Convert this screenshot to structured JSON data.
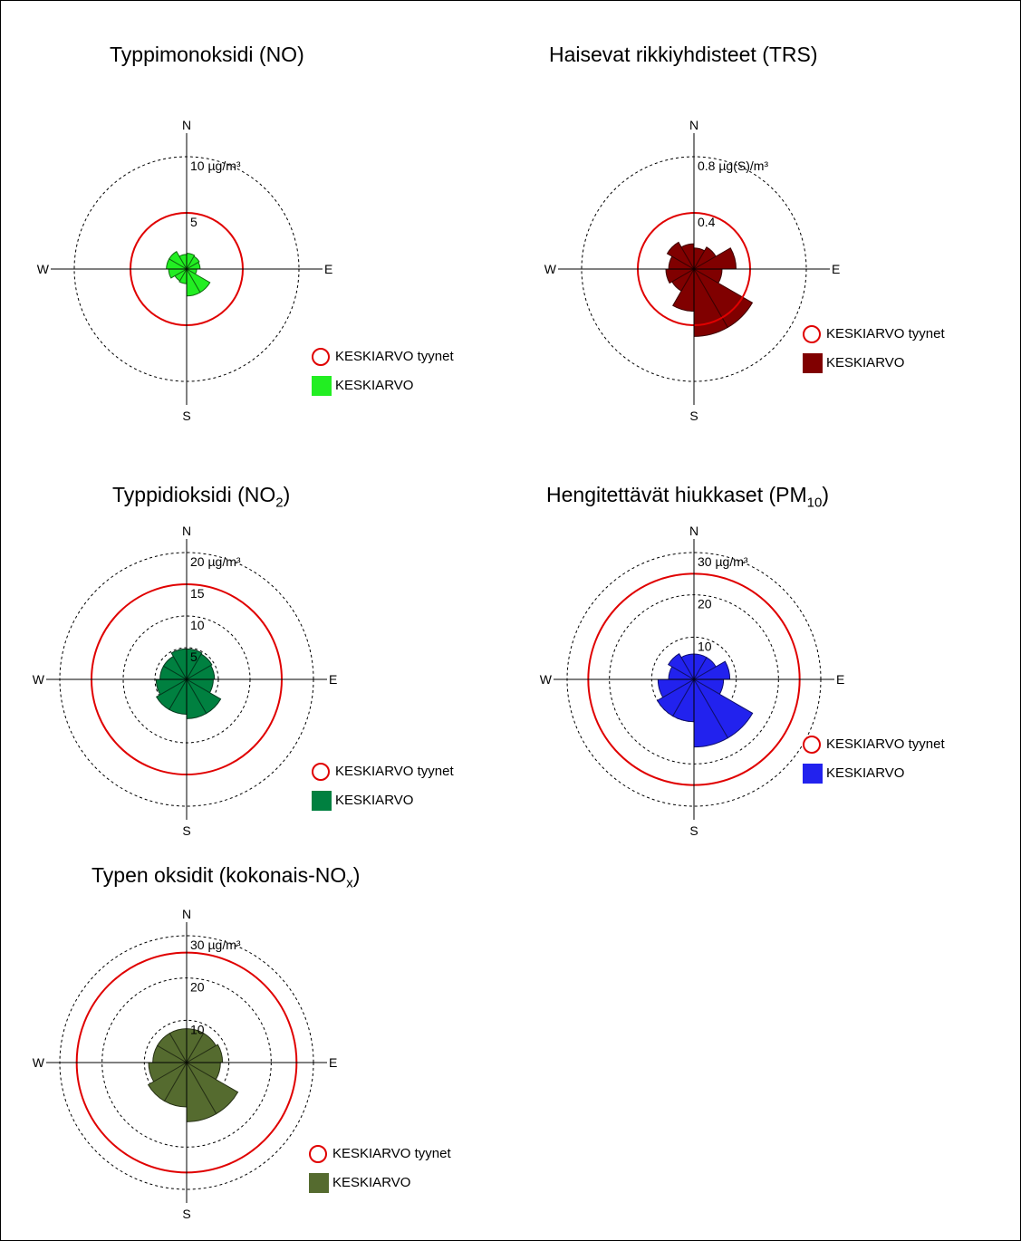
{
  "chart_data": [
    {
      "type": "windrose",
      "title": "Typpimonoksidi (NO)",
      "title_parts": {
        "main": "Typpimonoksidi (NO)",
        "sub": "",
        "tail": ""
      },
      "unit": "µg/m³",
      "rmax": 10,
      "ring_values": [
        10,
        5
      ],
      "ring_labels": [
        "10 µg/m³",
        "5"
      ],
      "calm_mean": 5,
      "directions": [
        "N",
        "NNE",
        "ENE",
        "E",
        "ESE",
        "SSE",
        "S",
        "SSW",
        "WSW",
        "W",
        "WNW",
        "NNW"
      ],
      "values": [
        1.4,
        1.3,
        1.2,
        0.9,
        2.4,
        2.4,
        1.3,
        1.2,
        1.6,
        1.8,
        1.8,
        1.3
      ],
      "compass": {
        "n": "N",
        "e": "E",
        "s": "S",
        "w": "W"
      },
      "color": "#22ee22",
      "legend": {
        "calm": "KESKIARVO tyynet",
        "mean": "KESKIARVO"
      }
    },
    {
      "type": "windrose",
      "title": "Haisevat rikkiyhdisteet (TRS)",
      "title_parts": {
        "main": "Haisevat rikkiyhdisteet (TRS)",
        "sub": "",
        "tail": ""
      },
      "unit": "µg(S)/m³",
      "rmax": 0.8,
      "ring_values": [
        0.8,
        0.4
      ],
      "ring_labels": [
        "0.8 µg(S)/m³",
        "0.4"
      ],
      "calm_mean": 0.4,
      "directions": [
        "N",
        "NNE",
        "ENE",
        "E",
        "ESE",
        "SSE",
        "S",
        "SSW",
        "WSW",
        "W",
        "WNW",
        "NNW"
      ],
      "values": [
        0.15,
        0.18,
        0.3,
        0.2,
        0.48,
        0.48,
        0.3,
        0.18,
        0.2,
        0.18,
        0.22,
        0.18
      ],
      "compass": {
        "n": "N",
        "e": "E",
        "s": "S",
        "w": "W"
      },
      "color": "#800000",
      "legend": {
        "calm": "KESKIARVO tyynet",
        "mean": "KESKIARVO"
      }
    },
    {
      "type": "windrose",
      "title": "Typpidioksidi (NO2)",
      "title_parts": {
        "main": "Typpidioksidi (NO",
        "sub": "2",
        "tail": ")"
      },
      "unit": "µg/m³",
      "rmax": 20,
      "ring_values": [
        20,
        15,
        10,
        5
      ],
      "ring_labels": [
        "20 µg/m³",
        "15",
        "10",
        "5"
      ],
      "calm_mean": 15,
      "directions": [
        "N",
        "NNE",
        "ENE",
        "E",
        "ESE",
        "SSE",
        "S",
        "SSW",
        "WSW",
        "W",
        "WNW",
        "NNW"
      ],
      "values": [
        4.8,
        4.6,
        4.4,
        4.2,
        6.2,
        6.2,
        5.5,
        5.5,
        4.8,
        4.2,
        4.2,
        4.8
      ],
      "compass": {
        "n": "N",
        "e": "E",
        "s": "S",
        "w": "W"
      },
      "color": "#008040",
      "legend": {
        "calm": "KESKIARVO tyynet",
        "mean": "KESKIARVO"
      }
    },
    {
      "type": "windrose",
      "title": "Hengitettävät hiukkaset (PM10)",
      "title_parts": {
        "main": "Hengitettävät hiukkaset (PM",
        "sub": "10",
        "tail": ")"
      },
      "unit": "µg/m³",
      "rmax": 30,
      "ring_values": [
        30,
        20,
        10
      ],
      "ring_labels": [
        "30 µg/m³",
        "20",
        "10"
      ],
      "calm_mean": 25,
      "directions": [
        "N",
        "NNE",
        "ENE",
        "E",
        "ESE",
        "SSE",
        "S",
        "SSW",
        "WSW",
        "W",
        "WNW",
        "NNW"
      ],
      "values": [
        6,
        6,
        8.5,
        7,
        16,
        16,
        10,
        10,
        8.5,
        6,
        7,
        6
      ],
      "compass": {
        "n": "N",
        "e": "E",
        "s": "S",
        "w": "W"
      },
      "color": "#2222ee",
      "legend": {
        "calm": "KESKIARVO tyynet",
        "mean": "KESKIARVO"
      }
    },
    {
      "type": "windrose",
      "title": "Typen oksidit (kokonais-NOx)",
      "title_parts": {
        "main": "Typen oksidit (kokonais-NO",
        "sub": "x",
        "tail": ")"
      },
      "unit": "µg/m³",
      "rmax": 30,
      "ring_values": [
        30,
        20,
        10
      ],
      "ring_labels": [
        "30 µg/m³",
        "20",
        "10"
      ],
      "calm_mean": 26,
      "directions": [
        "N",
        "NNE",
        "ENE",
        "E",
        "ESE",
        "SSE",
        "S",
        "SSW",
        "WSW",
        "W",
        "WNW",
        "NNW"
      ],
      "values": [
        8,
        8,
        8.5,
        8,
        14,
        14,
        10.5,
        10.5,
        9,
        8,
        8,
        8
      ],
      "compass": {
        "n": "N",
        "e": "E",
        "s": "S",
        "w": "W"
      },
      "color": "#556b2f",
      "legend": {
        "calm": "KESKIARVO tyynet",
        "mean": "KESKIARVO"
      }
    }
  ]
}
